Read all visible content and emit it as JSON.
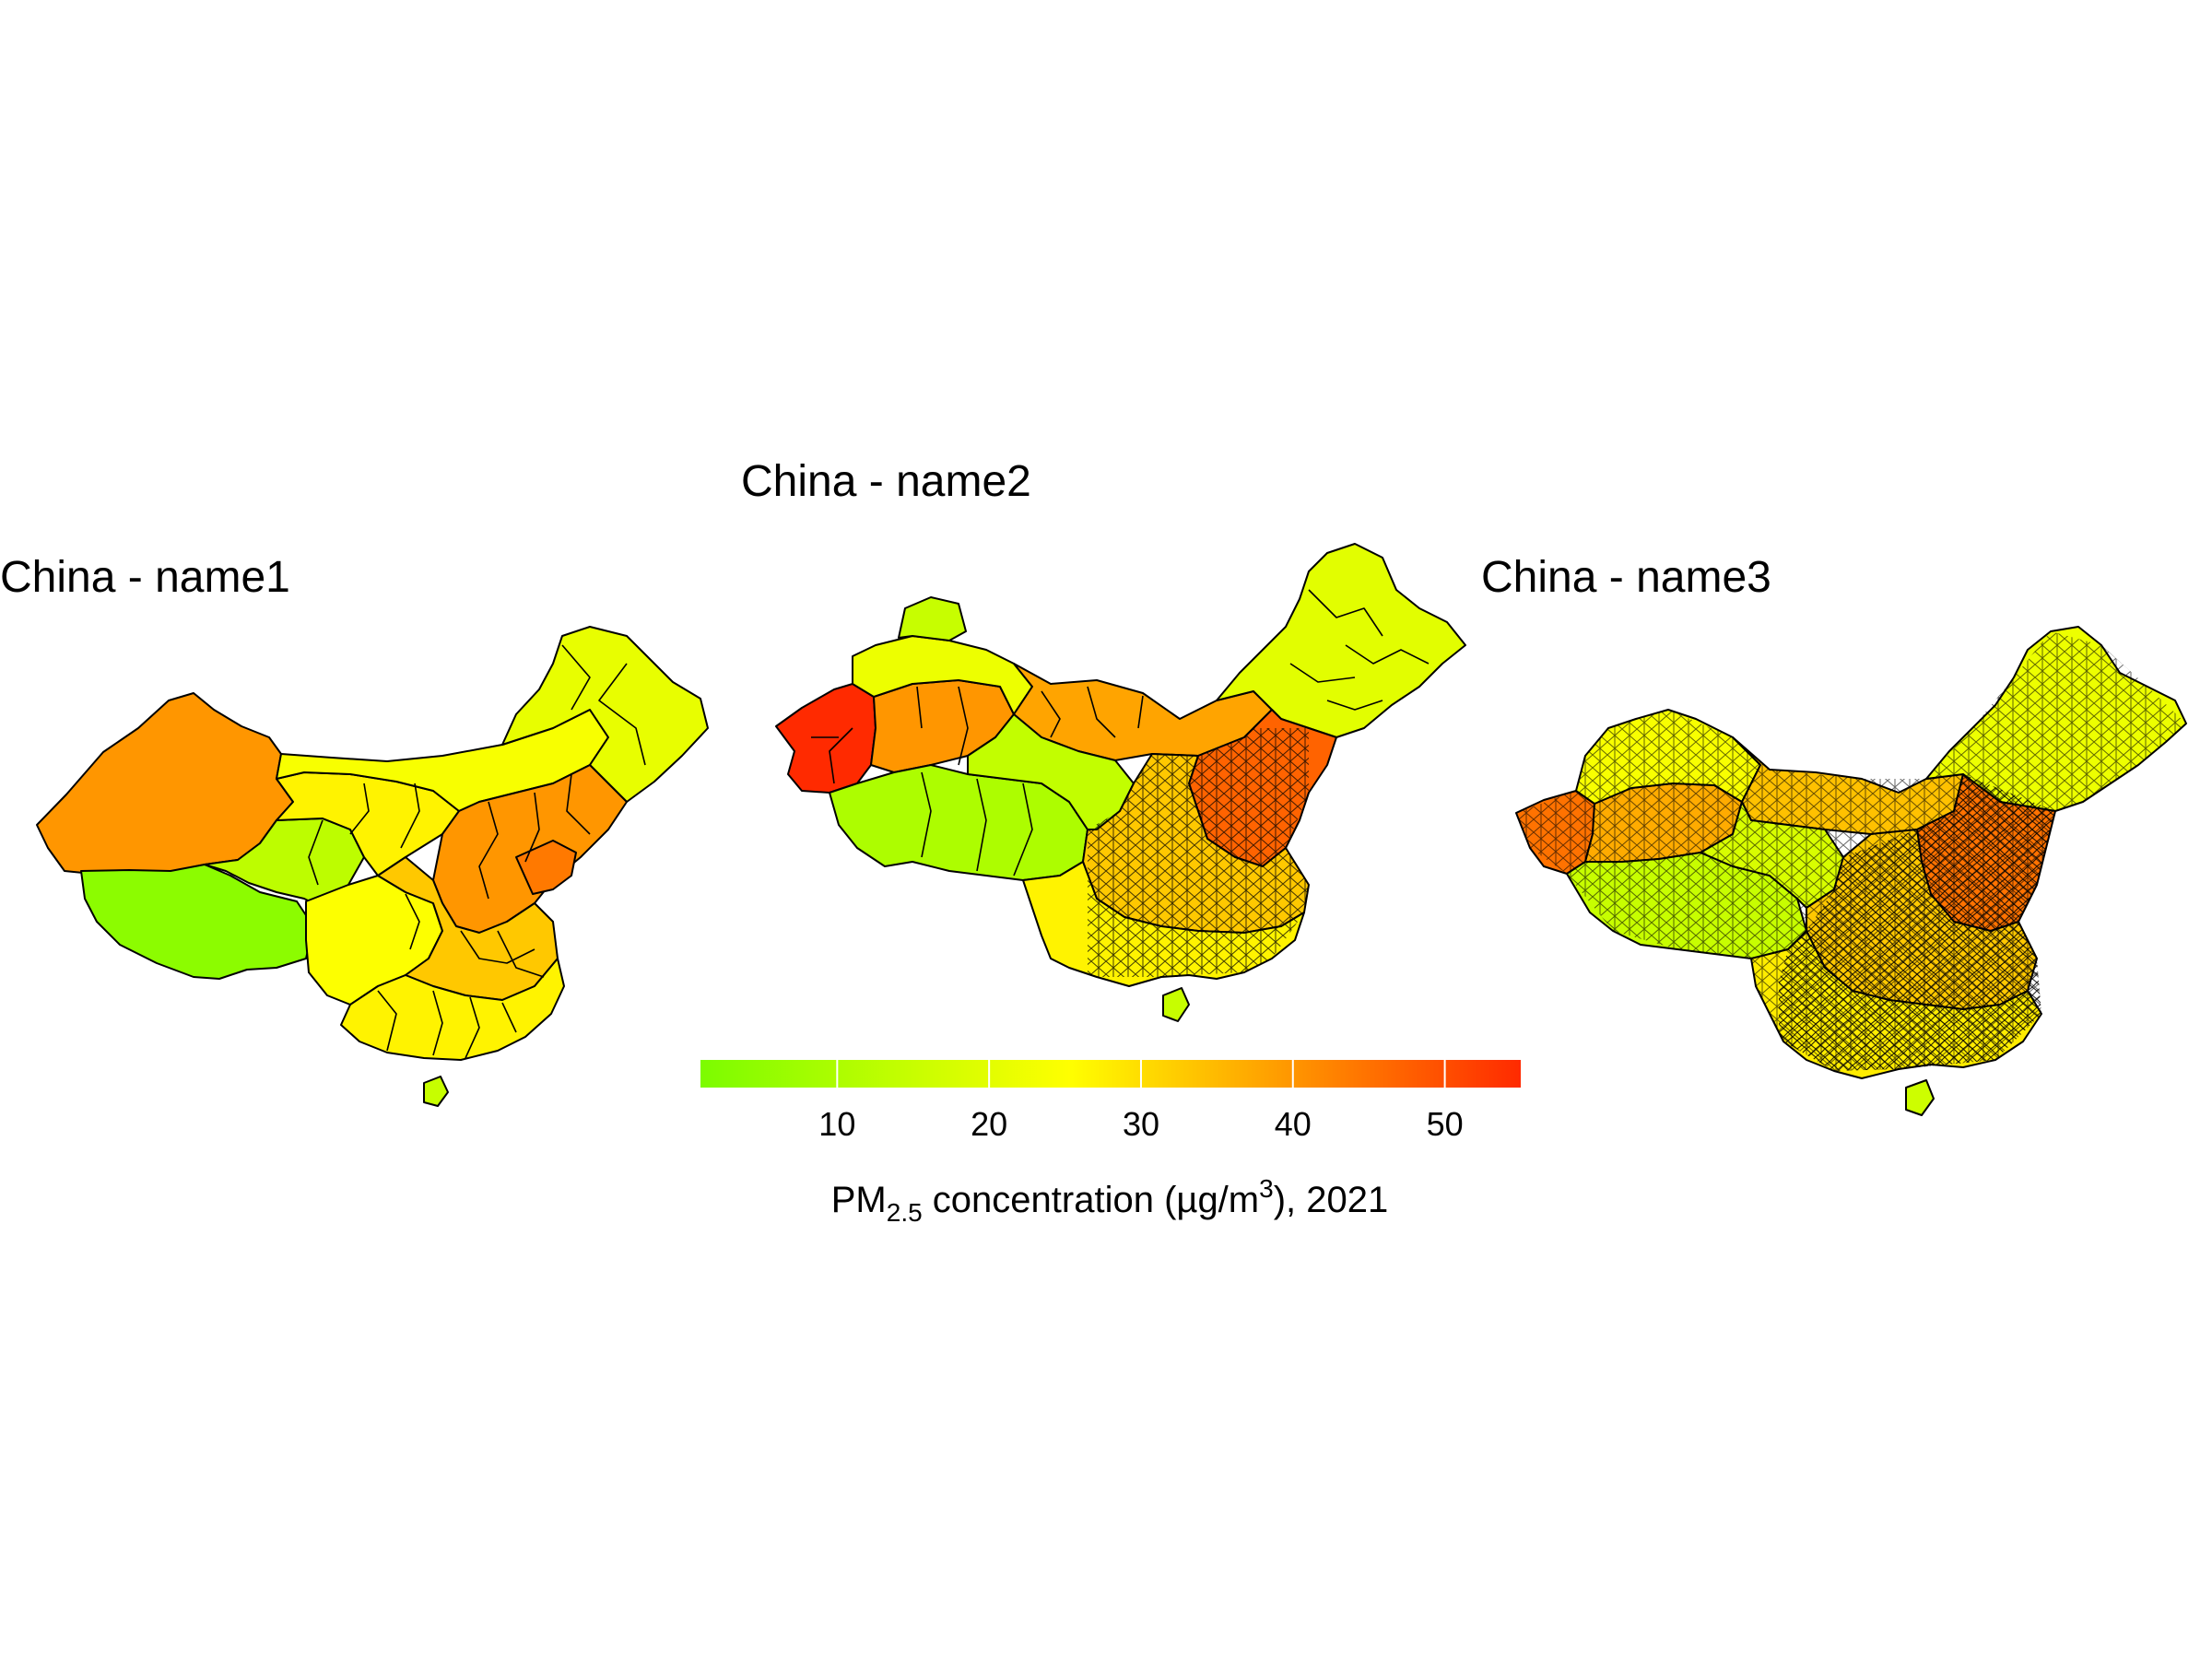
{
  "maps": [
    {
      "title": "China - name1",
      "level": "province"
    },
    {
      "title": "China - name2",
      "level": "prefecture"
    },
    {
      "title": "China - name3",
      "level": "county"
    }
  ],
  "legend": {
    "title_main": "PM",
    "title_sub": "2.5",
    "title_rest": " concentration (µg/m",
    "title_sup": "3",
    "title_end": "), 2021",
    "min": 1,
    "max": 55,
    "ticks": [
      10,
      20,
      30,
      40,
      50
    ],
    "colors": [
      "#7cfc00",
      "#ffff00",
      "#ff2a00"
    ]
  },
  "regions": {
    "name1": [
      {
        "region": "northwest",
        "pm25": 40
      },
      {
        "region": "tibet",
        "pm25": 4
      },
      {
        "region": "qinghai",
        "pm25": 13
      },
      {
        "region": "gansu",
        "pm25": 27
      },
      {
        "region": "inner-north",
        "pm25": 24
      },
      {
        "region": "northeast",
        "pm25": 21
      },
      {
        "region": "sichuan",
        "pm25": 25
      },
      {
        "region": "north-china",
        "pm25": 40
      },
      {
        "region": "shandong",
        "pm25": 44
      },
      {
        "region": "central",
        "pm25": 33
      },
      {
        "region": "south",
        "pm25": 27
      },
      {
        "region": "hainan",
        "pm25": 15
      }
    ],
    "name2": [
      {
        "region": "kashgar",
        "pm25": 55
      },
      {
        "region": "tarim",
        "pm25": 40
      },
      {
        "region": "north-xinjiang",
        "pm25": 22
      },
      {
        "region": "altay",
        "pm25": 15
      },
      {
        "region": "inner-west",
        "pm25": 38
      },
      {
        "region": "tibet",
        "pm25": 10
      },
      {
        "region": "qinghai",
        "pm25": 14
      },
      {
        "region": "northeast",
        "pm25": 20
      },
      {
        "region": "north-china-plain",
        "pm25": 47
      },
      {
        "region": "central",
        "pm25": 33
      },
      {
        "region": "south",
        "pm25": 27
      },
      {
        "region": "hainan",
        "pm25": 15
      }
    ],
    "name3": [
      {
        "region": "kashgar",
        "pm25": 45
      },
      {
        "region": "tarim",
        "pm25": 37
      },
      {
        "region": "north-xinjiang",
        "pm25": 24
      },
      {
        "region": "inner-west",
        "pm25": 34
      },
      {
        "region": "tibet",
        "pm25": 15
      },
      {
        "region": "qinghai",
        "pm25": 18
      },
      {
        "region": "northeast",
        "pm25": 22
      },
      {
        "region": "north-china-plain",
        "pm25": 45
      },
      {
        "region": "central",
        "pm25": 33
      },
      {
        "region": "south",
        "pm25": 28
      },
      {
        "region": "hainan",
        "pm25": 16
      }
    ]
  }
}
